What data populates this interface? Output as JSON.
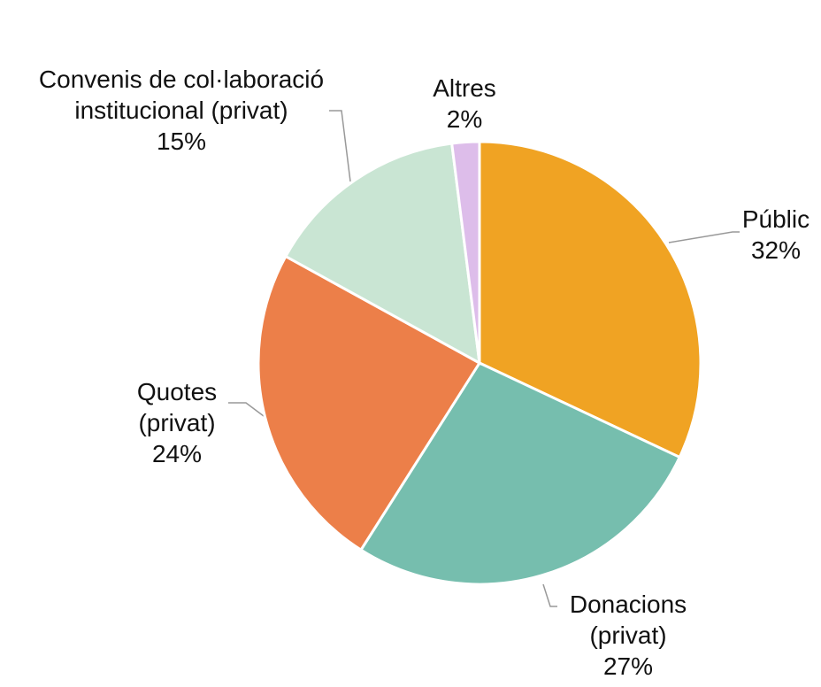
{
  "chart_data": {
    "type": "pie",
    "categories": [
      "Públic",
      "Donacions (privat)",
      "Quotes (privat)",
      "Convenis de col·laboració institucional (privat)",
      "Altres"
    ],
    "values": [
      32,
      27,
      24,
      15,
      2
    ],
    "value_labels": [
      "32%",
      "27%",
      "24%",
      "15%",
      "2%"
    ],
    "colors": [
      "#F0A323",
      "#76BEAE",
      "#EC7F49",
      "#C9E5D3",
      "#DDBDEA"
    ]
  }
}
